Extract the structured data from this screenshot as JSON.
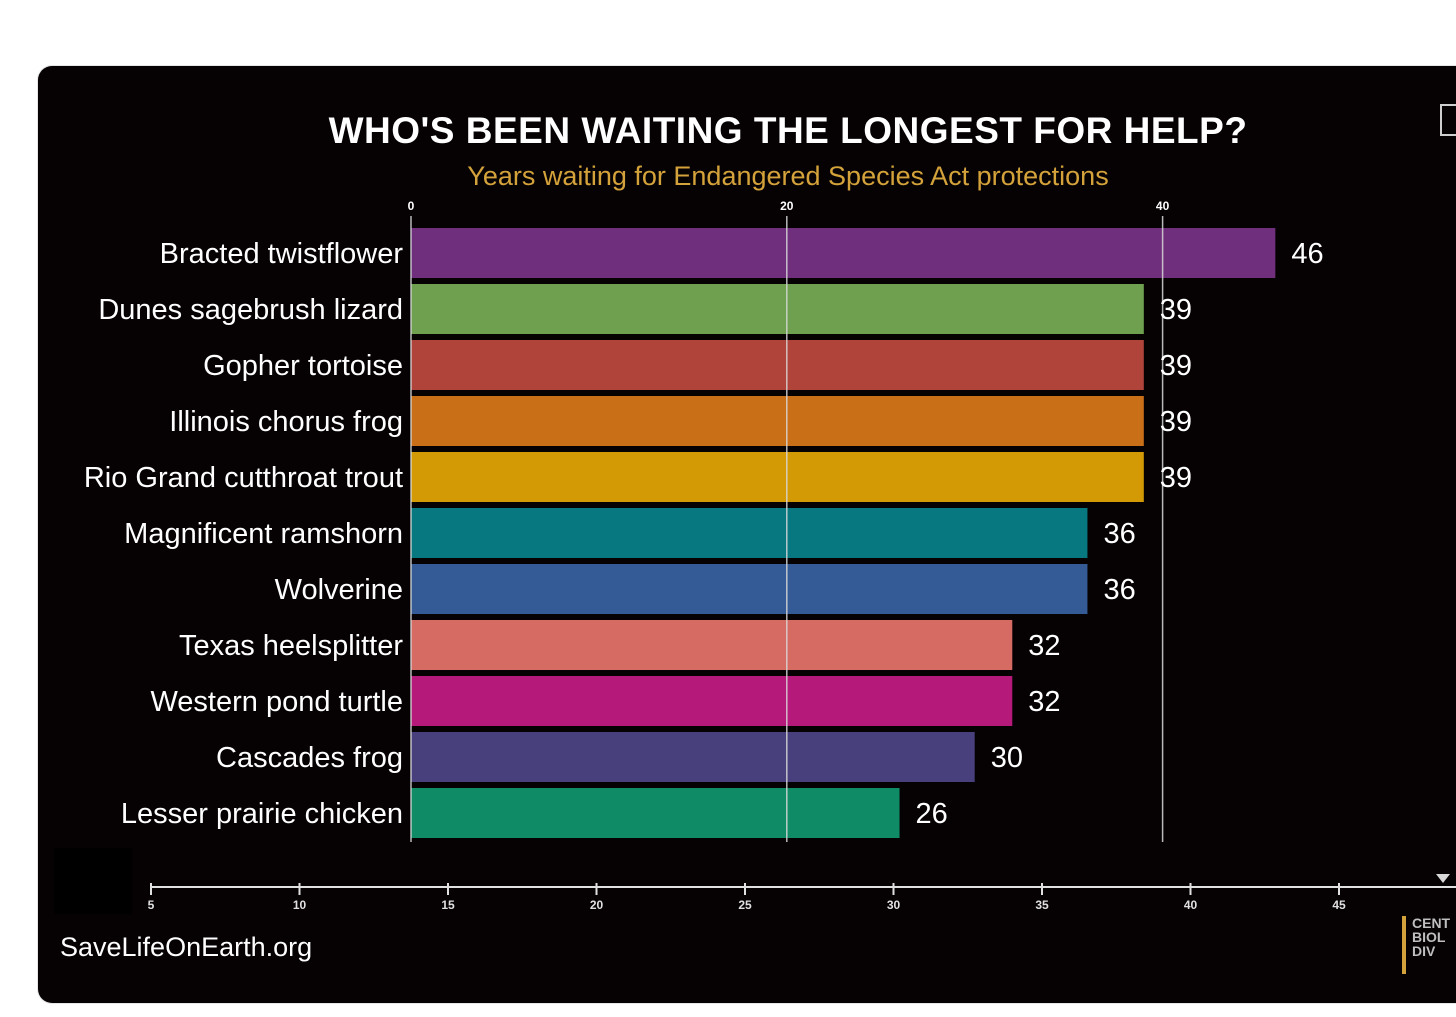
{
  "chart_data": {
    "type": "bar",
    "orientation": "horizontal",
    "title": "WHO'S BEEN WAITING THE LONGEST FOR HELP?",
    "subtitle": "Years waiting for Endangered Species Act protections",
    "categories": [
      "Bracted twistflower",
      "Dunes sagebrush lizard",
      "Gopher tortoise",
      "Illinois chorus frog",
      "Rio Grand cutthroat trout",
      "Magnificent ramshorn",
      "Wolverine",
      "Texas heelsplitter",
      "Western pond turtle",
      "Cascades frog",
      "Lesser prairie chicken"
    ],
    "values": [
      46,
      39,
      39,
      39,
      39,
      36,
      36,
      32,
      32,
      30,
      26
    ],
    "colors": [
      "#6f2f7c",
      "#6ea04f",
      "#b0433a",
      "#c96f18",
      "#d39a06",
      "#077780",
      "#355b96",
      "#d66b64",
      "#b51a7b",
      "#47407c",
      "#0f8c66"
    ],
    "top_axis": {
      "ticks": [
        0,
        20,
        40
      ],
      "range": [
        0,
        46
      ],
      "gridlines": true
    },
    "secondary_axis": {
      "ticks": [
        5,
        10,
        15,
        20,
        25,
        30,
        35,
        40,
        45
      ]
    }
  },
  "footer": {
    "website": "SaveLifeOnEarth.org",
    "logo_lines": [
      "CENT",
      "BIOL",
      "DIV"
    ]
  }
}
